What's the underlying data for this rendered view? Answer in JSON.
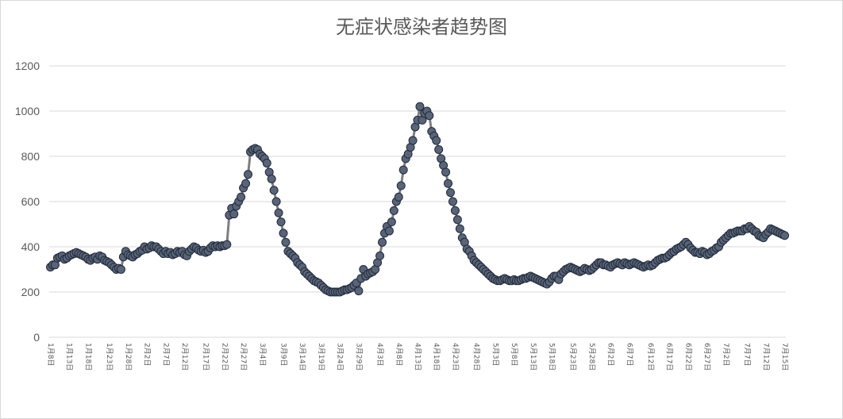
{
  "chart_data": {
    "type": "line",
    "title": "无症状感染者趋势图",
    "xlabel": "",
    "ylabel": "",
    "ylim": [
      0,
      1200
    ],
    "yticks": [
      0,
      200,
      400,
      600,
      800,
      1000,
      1200
    ],
    "grid": true,
    "legend": "none",
    "colors": {
      "line": "#7f7f7f",
      "marker_fill": "#5a6478",
      "marker_edge": "#1f2a3a",
      "grid": "#d9d9d9",
      "text": "#595959"
    },
    "x_tick_labels": [
      "1月8日",
      "1月13日",
      "1月18日",
      "1月23日",
      "1月28日",
      "2月2日",
      "2月7日",
      "2月12日",
      "2月17日",
      "2月22日",
      "2月27日",
      "3月4日",
      "3月9日",
      "3月14日",
      "3月19日",
      "3月24日",
      "3月29日",
      "4月3日",
      "4月8日",
      "4月13日",
      "4月18日",
      "4月23日",
      "4月28日",
      "5月3日",
      "5月8日",
      "5月13日",
      "5月18日",
      "5月23日",
      "5月28日",
      "6月2日",
      "6月7日",
      "6月12日",
      "6月17日",
      "6月22日",
      "6月27日",
      "7月2日",
      "7月7日",
      "7月12日",
      "7月15日"
    ],
    "series": [
      {
        "values": [
          310,
          320,
          320,
          350,
          355,
          360,
          345,
          350,
          360,
          365,
          370,
          375,
          370,
          365,
          360,
          355,
          345,
          340,
          350,
          355,
          345,
          360,
          355,
          340,
          335,
          330,
          320,
          310,
          300,
          305,
          300,
          355,
          380,
          365,
          360,
          355,
          365,
          370,
          380,
          385,
          400,
          390,
          395,
          405,
          400,
          400,
          390,
          380,
          370,
          380,
          370,
          375,
          365,
          370,
          380,
          375,
          380,
          365,
          360,
          380,
          390,
          400,
          395,
          385,
          380,
          385,
          375,
          380,
          395,
          405,
          400,
          405,
          400,
          405,
          405,
          410,
          540,
          570,
          545,
          580,
          600,
          620,
          660,
          680,
          720,
          820,
          830,
          835,
          830,
          810,
          800,
          790,
          770,
          730,
          700,
          650,
          600,
          550,
          510,
          460,
          420,
          380,
          370,
          360,
          350,
          330,
          320,
          310,
          290,
          280,
          270,
          260,
          250,
          245,
          240,
          230,
          220,
          210,
          205,
          200,
          200,
          200,
          200,
          200,
          205,
          210,
          210,
          215,
          220,
          230,
          240,
          205,
          260,
          300,
          270,
          280,
          285,
          290,
          300,
          330,
          360,
          420,
          460,
          490,
          470,
          510,
          560,
          600,
          620,
          670,
          740,
          790,
          810,
          840,
          870,
          930,
          960,
          1020,
          960,
          990,
          1000,
          980,
          910,
          890,
          870,
          830,
          790,
          760,
          730,
          680,
          640,
          600,
          560,
          520,
          480,
          440,
          420,
          390,
          380,
          360,
          340,
          330,
          320,
          310,
          300,
          290,
          280,
          270,
          260,
          255,
          250,
          250,
          255,
          260,
          255,
          250,
          250,
          255,
          250,
          250,
          255,
          260,
          260,
          265,
          270,
          265,
          260,
          255,
          250,
          245,
          240,
          235,
          245,
          260,
          270,
          270,
          255,
          280,
          290,
          300,
          305,
          310,
          305,
          300,
          295,
          290,
          295,
          305,
          300,
          295,
          300,
          310,
          320,
          330,
          330,
          320,
          320,
          315,
          310,
          320,
          325,
          330,
          325,
          320,
          330,
          325,
          320,
          325,
          330,
          325,
          320,
          315,
          310,
          315,
          320,
          315,
          320,
          330,
          340,
          345,
          350,
          350,
          355,
          365,
          375,
          380,
          390,
          395,
          400,
          410,
          420,
          410,
          395,
          385,
          375,
          375,
          370,
          380,
          375,
          365,
          370,
          380,
          385,
          395,
          400,
          420,
          430,
          440,
          450,
          460,
          460,
          465,
          470,
          470,
          470,
          480,
          480,
          490,
          480,
          470,
          465,
          450,
          445,
          440,
          455,
          465,
          480,
          475,
          470,
          465,
          460,
          455,
          450
        ]
      }
    ]
  }
}
